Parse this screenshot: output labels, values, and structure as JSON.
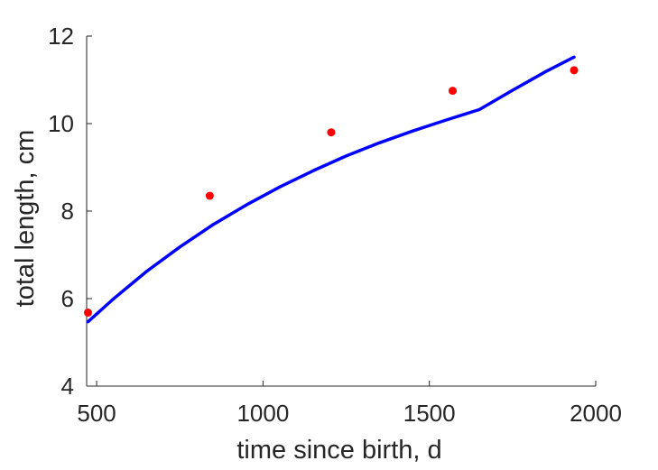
{
  "chart_data": {
    "type": "scatter",
    "xlabel": "time since birth, d",
    "ylabel": "total length, cm",
    "xlim": [
      470,
      2000
    ],
    "ylim": [
      4,
      12
    ],
    "x_ticks": [
      500,
      1000,
      1500,
      2000
    ],
    "y_ticks": [
      4,
      6,
      8,
      10,
      12
    ],
    "x_tick_labels": [
      "500",
      "1000",
      "1500",
      "2000"
    ],
    "y_tick_labels": [
      "4",
      "6",
      "8",
      "10",
      "12"
    ],
    "grid": false,
    "series": [
      {
        "kind": "points",
        "color": "#ff0000",
        "x": [
          474,
          840,
          1205,
          1570,
          1935
        ],
        "y": [
          5.68,
          8.35,
          9.8,
          10.75,
          11.22
        ]
      },
      {
        "kind": "line",
        "color": "#0000ff",
        "x": [
          474,
          550,
          650,
          750,
          850,
          950,
          1050,
          1150,
          1250,
          1350,
          1450,
          1550,
          1650,
          1750,
          1850,
          1935
        ],
        "y": [
          5.47,
          5.99,
          6.62,
          7.18,
          7.69,
          8.14,
          8.55,
          8.92,
          9.26,
          9.56,
          9.83,
          10.08,
          10.32,
          10.76,
          11.19,
          11.52
        ]
      }
    ]
  }
}
